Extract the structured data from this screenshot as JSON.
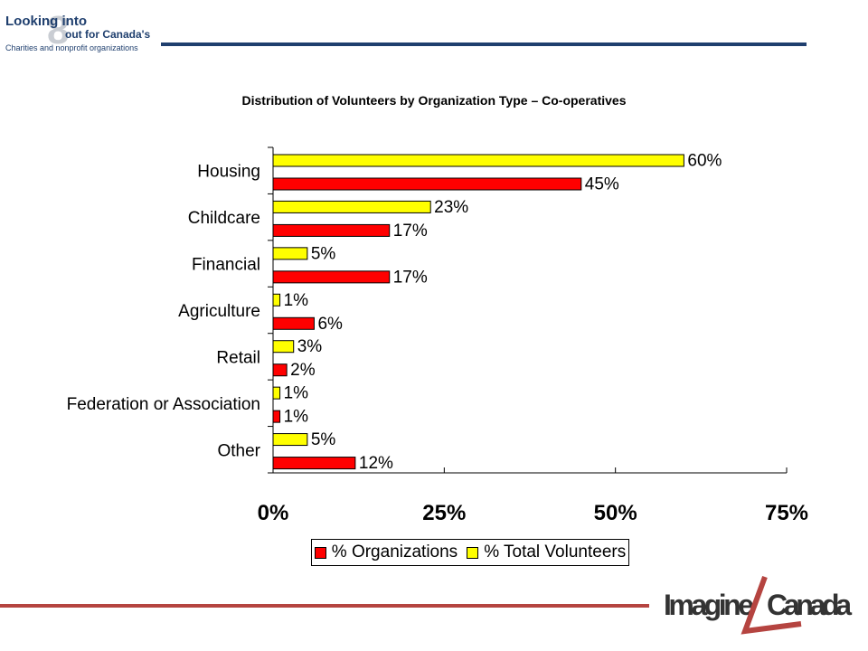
{
  "header": {
    "logo_line1": "Looking into",
    "logo_number": "8",
    "logo_line2": "out for Canada's",
    "logo_line3": "Charities and nonprofit organizations"
  },
  "footer": {
    "logo_word1": "Imagine",
    "logo_word2": "Canada"
  },
  "colors": {
    "organizations": "#ff0000",
    "volunteers": "#ffff00",
    "rule_top": "#1f3f6e",
    "rule_bottom": "#b54440"
  },
  "chart_data": {
    "type": "bar",
    "orientation": "horizontal",
    "title": "Distribution of Volunteers by Organization Type – Co-operatives",
    "categories": [
      "Housing",
      "Childcare",
      "Financial",
      "Agriculture",
      "Retail",
      "Federation or Association",
      "Other"
    ],
    "series": [
      {
        "name": "% Total Volunteers",
        "values": [
          60,
          23,
          5,
          1,
          3,
          1,
          5
        ],
        "labels": [
          "60%",
          "23%",
          "5%",
          "1%",
          "3%",
          "1%",
          "5%"
        ]
      },
      {
        "name": "% Organizations",
        "values": [
          45,
          17,
          17,
          6,
          2,
          1,
          12
        ],
        "labels": [
          "45%",
          "17%",
          "17%",
          "6%",
          "2%",
          "1%",
          "12%"
        ]
      }
    ],
    "xlim": [
      0,
      75
    ],
    "xticks": [
      0,
      25,
      50,
      75
    ],
    "xtick_labels": [
      "0%",
      "25%",
      "50%",
      "75%"
    ],
    "legend": [
      "% Organizations",
      "% Total Volunteers"
    ],
    "legend_position": "bottom",
    "grid": false
  }
}
